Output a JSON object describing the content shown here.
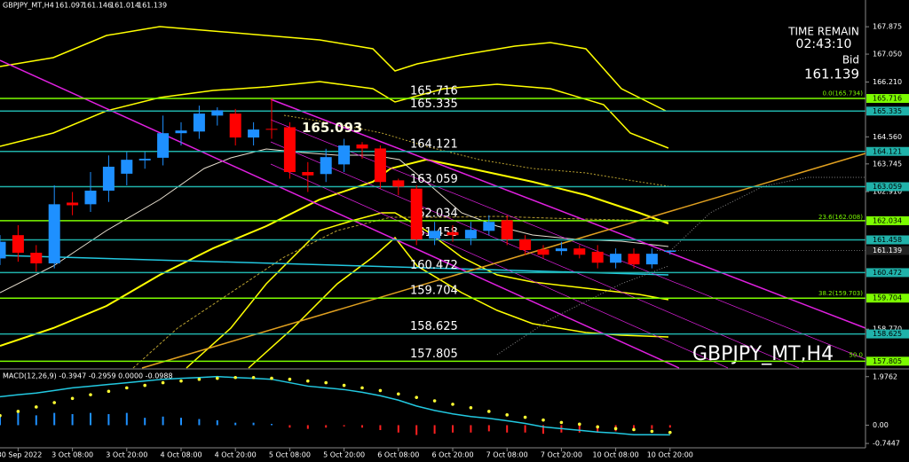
{
  "chart_data": {
    "type": "candlestick",
    "symbol": "GBPJPY_MT,H4",
    "categories": [
      null,
      "30 Sep 2022",
      null,
      null,
      "3 Oct 08:00",
      null,
      null,
      "3 Oct 20:00",
      null,
      null,
      "4 Oct 08:00",
      null,
      null,
      "4 Oct 20:00",
      null,
      null,
      "5 Oct 08:00",
      null,
      null,
      "5 Oct 20:00",
      null,
      null,
      "6 Oct 08:00",
      null,
      null,
      "6 Oct 20:00",
      null,
      null,
      "7 Oct 08:00",
      null,
      null,
      "7 Oct 20:00",
      null,
      null,
      "10 Oct 08:00",
      null,
      null,
      "10 Oct 20:00"
    ],
    "open": [
      160.9,
      161.6,
      161.07,
      160.75,
      162.58,
      162.53,
      162.94,
      163.45,
      163.85,
      163.93,
      164.67,
      164.72,
      165.2,
      165.26,
      164.54,
      164.8,
      164.85,
      163.5,
      163.44,
      163.73,
      164.33,
      164.21,
      163.25,
      163.0,
      161.5,
      161.69,
      161.5,
      161.73,
      162.05,
      161.47,
      161.17,
      161.12,
      161.2,
      161.1,
      160.77,
      161.04,
      160.72,
      161.097
    ],
    "high": [
      161.6,
      161.9,
      161.3,
      163.1,
      162.9,
      163.5,
      164.0,
      164.1,
      164.1,
      165.2,
      165.0,
      165.5,
      165.45,
      165.4,
      165.0,
      165.716,
      165.0,
      163.8,
      164.2,
      164.5,
      164.4,
      164.3,
      163.3,
      163.1,
      162.0,
      161.9,
      162.0,
      162.2,
      162.2,
      161.6,
      161.3,
      161.4,
      161.3,
      161.3,
      161.2,
      161.2,
      161.2,
      161.146
    ],
    "low": [
      160.7,
      160.8,
      160.5,
      160.6,
      162.2,
      162.3,
      162.6,
      163.1,
      163.6,
      163.7,
      164.3,
      164.5,
      164.9,
      164.3,
      164.3,
      164.5,
      163.3,
      162.9,
      163.2,
      163.5,
      163.9,
      163.0,
      162.8,
      161.3,
      161.3,
      161.4,
      161.3,
      161.6,
      161.3,
      161.0,
      160.9,
      161.0,
      160.9,
      160.6,
      160.6,
      160.6,
      160.6,
      161.014
    ],
    "close": [
      161.4,
      161.07,
      160.75,
      162.53,
      162.5,
      162.94,
      163.66,
      163.87,
      163.9,
      164.67,
      164.75,
      165.26,
      165.36,
      164.54,
      164.78,
      164.78,
      163.5,
      163.4,
      163.95,
      164.3,
      164.21,
      163.2,
      163.06,
      161.47,
      161.73,
      161.6,
      161.76,
      162.0,
      161.47,
      161.15,
      161.01,
      161.2,
      161.01,
      160.77,
      161.04,
      160.72,
      161.04,
      161.139
    ],
    "up_color": "#1e90ff",
    "down_color": "#ff0000",
    "ylim": [
      157.6,
      168.68
    ],
    "yticks": [
      167.875,
      {
        "value": 167.05,
        "label": "167.050"
      },
      {
        "value": 166.21,
        "label": "166.210"
      },
      {
        "value": 164.56,
        "label": "164.560"
      },
      163.745,
      {
        "value": 162.91,
        "label": "162.910"
      },
      {
        "value": 158.77,
        "label": "158.770"
      }
    ],
    "levels": [
      {
        "value": 165.716,
        "color": "#7cfc00"
      },
      {
        "value": 165.335,
        "color": "#20b2aa"
      },
      {
        "value": 164.121,
        "color": "#20b2aa"
      },
      {
        "value": 163.059,
        "color": "#20b2aa"
      },
      {
        "value": 162.034,
        "color": "#7cfc00"
      },
      {
        "value": 161.458,
        "color": "#20b2aa"
      },
      {
        "value": 160.472,
        "color": "#20b2aa"
      },
      {
        "value": 159.704,
        "color": "#7cfc00"
      },
      {
        "value": 158.625,
        "color": "#20b2aa"
      },
      {
        "value": 157.805,
        "color": "#7cfc00"
      }
    ],
    "fib": [
      {
        "label": "0.0(165.734)",
        "value": 165.734
      },
      {
        "label": "23.6(162.008)",
        "value": 162.008
      },
      {
        "label": "38.2(159.703)",
        "value": 159.703
      },
      {
        "label": "50.0",
        "value": 157.85
      }
    ],
    "peak_label": 165.093,
    "time_remain_label": "TIME REMAIN",
    "time_remain": "02:43:10",
    "bid_label": "Bid",
    "macd": {
      "label": "MACD(12,26,9) -0.3947 -0.2959 0.0000 -0.0988",
      "ylim": [
        -0.85,
        2.22
      ],
      "yticks": [
        1.9762,
        {
          "value": 0,
          "label": "0.00"
        },
        -0.7447
      ],
      "histogram": [
        0.45,
        0.5,
        0.4,
        0.5,
        0.45,
        0.5,
        0.45,
        0.5,
        0.3,
        0.35,
        0.3,
        0.25,
        0.2,
        0.1,
        0.1,
        0.05,
        -0.1,
        -0.15,
        -0.1,
        -0.05,
        -0.1,
        -0.2,
        -0.3,
        -0.4,
        -0.35,
        -0.3,
        -0.3,
        -0.25,
        -0.3,
        -0.3,
        -0.35,
        -0.3,
        -0.3,
        -0.3,
        -0.25,
        -0.2,
        -0.15,
        -0.0988
      ],
      "main": [
        1.16,
        1.24,
        1.31,
        1.41,
        1.52,
        1.59,
        1.66,
        1.73,
        1.8,
        1.87,
        1.91,
        1.94,
        1.98,
        1.94,
        1.91,
        1.87,
        1.73,
        1.59,
        1.52,
        1.45,
        1.34,
        1.2,
        1.02,
        0.78,
        0.6,
        0.46,
        0.35,
        0.28,
        0.18,
        0.07,
        -0.07,
        -0.14,
        -0.21,
        -0.28,
        -0.32,
        -0.39,
        -0.39,
        -0.3947
      ],
      "signal": [
        0.39,
        0.56,
        0.74,
        0.92,
        1.09,
        1.24,
        1.38,
        1.52,
        1.62,
        1.73,
        1.8,
        1.87,
        1.91,
        1.94,
        1.94,
        1.91,
        1.87,
        1.8,
        1.73,
        1.62,
        1.52,
        1.41,
        1.27,
        1.13,
        0.99,
        0.85,
        0.71,
        0.56,
        0.42,
        0.32,
        0.21,
        0.11,
        0.04,
        -0.07,
        -0.14,
        -0.18,
        -0.25,
        -0.2959
      ],
      "main_color": "#22c8e0",
      "signal_color": "#ffff33",
      "pos_color": "#1e90ff",
      "neg_color": "#ff2020"
    }
  }
}
